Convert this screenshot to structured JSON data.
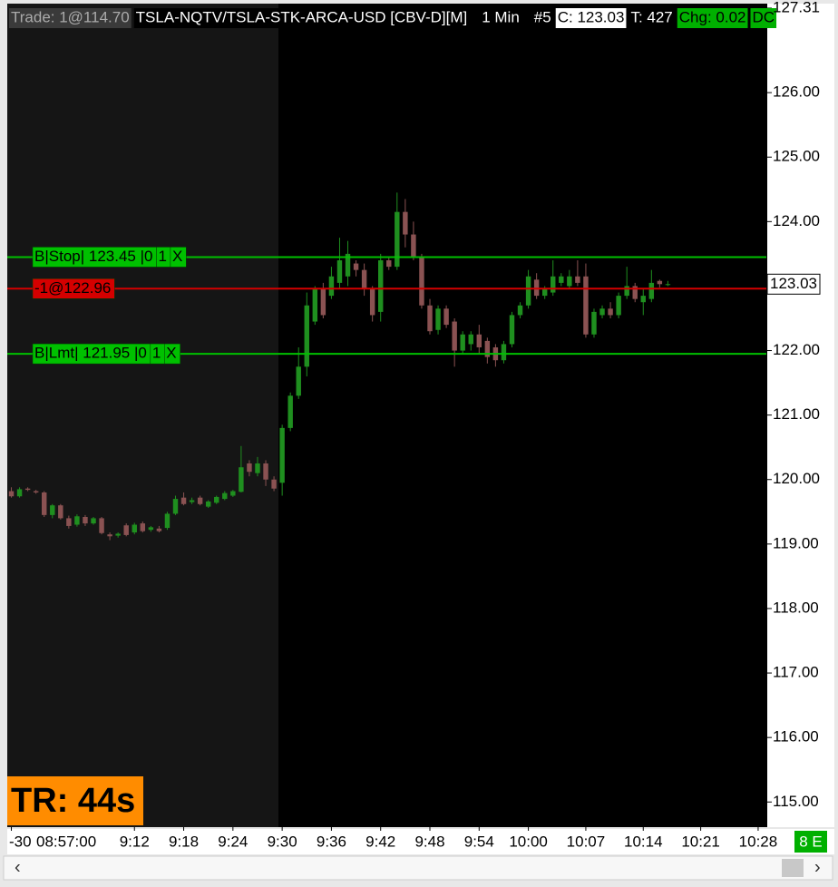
{
  "chart_data": {
    "type": "candlestick",
    "header": {
      "trade": "Trade: 1@114.70",
      "symbol": "TSLA-NQTV/TSLA-STK-ARCA-USD [CBV-D][M]",
      "interval": "1 Min",
      "chart_no": "#5",
      "close": "C: 123.03",
      "ticks": "T: 427",
      "change": "Chg: 0.02",
      "flag": "DC"
    },
    "timer": "TR: 44s",
    "corner": "8 E",
    "offset_label": "-30",
    "up_color": "#1f8f1f",
    "down_color": "#8a5252",
    "x": [
      537,
      538,
      539,
      540,
      541,
      542,
      543,
      544,
      545,
      546,
      547,
      548,
      549,
      550,
      551,
      552,
      553,
      554,
      555,
      556,
      557,
      558,
      559,
      560,
      561,
      562,
      563,
      564,
      565,
      566,
      567,
      568,
      569,
      570,
      571,
      572,
      573,
      574,
      575,
      576,
      577,
      578,
      579,
      580,
      581,
      582,
      583,
      584,
      585,
      586,
      587,
      588,
      589,
      590,
      591,
      592,
      593,
      594,
      595,
      596,
      597,
      598,
      599,
      600,
      601,
      602,
      603,
      604,
      605,
      606,
      607,
      608,
      609,
      610,
      611,
      612,
      613,
      614,
      615,
      616,
      617
    ],
    "open": [
      119.82,
      119.74,
      119.86,
      119.82,
      119.8,
      119.45,
      119.6,
      119.4,
      119.3,
      119.42,
      119.32,
      119.4,
      119.15,
      119.13,
      119.29,
      119.18,
      119.32,
      119.22,
      119.24,
      119.25,
      119.47,
      119.72,
      119.65,
      119.72,
      119.58,
      119.64,
      119.7,
      119.75,
      119.81,
      120.25,
      120.1,
      120.25,
      120.0,
      119.95,
      120.8,
      121.3,
      121.75,
      122.45,
      122.95,
      122.85,
      123.05,
      123.15,
      123.35,
      123.25,
      122.95,
      122.6,
      123.4,
      123.3,
      124.15,
      123.8,
      123.45,
      122.7,
      122.32,
      122.65,
      122.45,
      122.0,
      122.1,
      122.25,
      122.15,
      122.05,
      121.85,
      122.1,
      122.55,
      122.7,
      123.1,
      122.85,
      122.9,
      123.05,
      123.0,
      123.15,
      123.15,
      122.25,
      122.55,
      122.65,
      122.55,
      122.85,
      123.0,
      122.75,
      122.8,
      123.08,
      123.03
    ],
    "high": [
      119.88,
      119.88,
      119.88,
      119.84,
      119.82,
      119.62,
      119.62,
      119.44,
      119.46,
      119.45,
      119.42,
      119.42,
      119.18,
      119.18,
      119.32,
      119.33,
      119.35,
      119.28,
      119.28,
      119.5,
      119.75,
      119.8,
      119.72,
      119.75,
      119.68,
      119.75,
      119.82,
      119.84,
      120.52,
      120.3,
      120.35,
      120.3,
      120.05,
      120.85,
      121.35,
      122.05,
      122.9,
      123.0,
      123.05,
      123.3,
      123.75,
      123.7,
      123.4,
      123.35,
      123.0,
      123.5,
      123.45,
      124.45,
      124.35,
      124.0,
      123.5,
      122.8,
      122.7,
      122.7,
      122.5,
      122.3,
      122.3,
      122.4,
      122.2,
      122.1,
      122.15,
      122.6,
      122.75,
      123.25,
      123.2,
      123.0,
      123.4,
      123.2,
      123.25,
      123.4,
      123.35,
      122.65,
      122.7,
      122.75,
      122.9,
      123.3,
      123.05,
      122.95,
      123.25,
      123.1,
      123.08
    ],
    "low": [
      119.72,
      119.72,
      119.82,
      119.78,
      119.42,
      119.4,
      119.38,
      119.24,
      119.27,
      119.28,
      119.3,
      119.15,
      119.06,
      119.1,
      119.12,
      119.15,
      119.18,
      119.19,
      119.18,
      119.22,
      119.45,
      119.6,
      119.62,
      119.6,
      119.56,
      119.62,
      119.68,
      119.73,
      119.8,
      120.05,
      120.05,
      119.9,
      119.82,
      119.75,
      120.75,
      121.25,
      121.6,
      122.4,
      122.5,
      122.8,
      122.95,
      123.0,
      123.15,
      122.85,
      122.45,
      122.45,
      123.25,
      123.25,
      123.6,
      123.4,
      122.65,
      122.25,
      122.25,
      122.35,
      121.75,
      121.95,
      122.0,
      121.95,
      121.8,
      121.75,
      121.8,
      122.05,
      122.5,
      122.65,
      122.8,
      122.8,
      122.85,
      123.0,
      122.95,
      123.0,
      122.2,
      122.2,
      122.5,
      122.5,
      122.5,
      122.8,
      122.75,
      122.55,
      122.75,
      122.98,
      123.0
    ],
    "close": [
      119.74,
      119.85,
      119.84,
      119.8,
      119.45,
      119.6,
      119.4,
      119.28,
      119.43,
      119.32,
      119.4,
      119.17,
      119.12,
      119.16,
      119.14,
      119.3,
      119.2,
      119.26,
      119.2,
      119.47,
      119.7,
      119.62,
      119.68,
      119.62,
      119.66,
      119.73,
      119.79,
      119.82,
      120.19,
      120.12,
      120.25,
      120.0,
      119.86,
      120.8,
      121.3,
      121.75,
      122.7,
      122.95,
      122.55,
      123.15,
      123.4,
      123.5,
      123.25,
      122.95,
      122.55,
      123.4,
      123.3,
      124.15,
      123.8,
      123.45,
      122.7,
      122.3,
      122.65,
      122.4,
      122.0,
      122.25,
      122.25,
      122.05,
      121.9,
      121.85,
      122.1,
      122.55,
      122.7,
      123.15,
      122.85,
      122.95,
      123.15,
      123.15,
      123.15,
      123.05,
      122.25,
      122.6,
      122.65,
      122.55,
      122.85,
      123.0,
      122.8,
      122.85,
      123.05,
      123.03,
      123.03
    ],
    "xlim": [
      536.5,
      629
    ],
    "xticks": [
      {
        "value": 537,
        "label": "08:57:00"
      },
      {
        "value": 552,
        "label": "9:12"
      },
      {
        "value": 558,
        "label": "9:18"
      },
      {
        "value": 564,
        "label": "9:24"
      },
      {
        "value": 570,
        "label": "9:30"
      },
      {
        "value": 576,
        "label": "9:36"
      },
      {
        "value": 582,
        "label": "9:42"
      },
      {
        "value": 588,
        "label": "9:48"
      },
      {
        "value": 594,
        "label": "9:54"
      },
      {
        "value": 600,
        "label": "10:00"
      },
      {
        "value": 607,
        "label": "10:07"
      },
      {
        "value": 614,
        "label": "10:14"
      },
      {
        "value": 621,
        "label": "10:21"
      },
      {
        "value": 628,
        "label": "10:28"
      }
    ],
    "ylim": [
      114.61,
      127.38
    ],
    "yticks": [
      {
        "value": 115,
        "label": "115.00"
      },
      {
        "value": 116,
        "label": "116.00"
      },
      {
        "value": 117,
        "label": "117.00"
      },
      {
        "value": 118,
        "label": "118.00"
      },
      {
        "value": 119,
        "label": "119.00"
      },
      {
        "value": 120,
        "label": "120.00"
      },
      {
        "value": 121,
        "label": "121.00"
      },
      {
        "value": 122,
        "label": "122.00"
      },
      {
        "value": 123,
        "label": "123.00"
      },
      {
        "value": 124,
        "label": "124.00"
      },
      {
        "value": 125,
        "label": "125.00"
      },
      {
        "value": 126,
        "label": "126.00"
      },
      {
        "value": 127.31,
        "label": "127.31"
      }
    ],
    "last_price": {
      "value": 123.03,
      "label": "123.03"
    },
    "orders": [
      {
        "value": 123.45,
        "color": "#00c000",
        "parts": [
          "B|Stop| 123.45 |0",
          "1",
          "X"
        ]
      },
      {
        "value": 122.96,
        "color": "#d40000",
        "parts": [
          "-1@122.96"
        ]
      },
      {
        "value": 121.95,
        "color": "#00c000",
        "parts": [
          "B|Lmt| 121.95 |0",
          "1",
          "X"
        ]
      }
    ]
  }
}
